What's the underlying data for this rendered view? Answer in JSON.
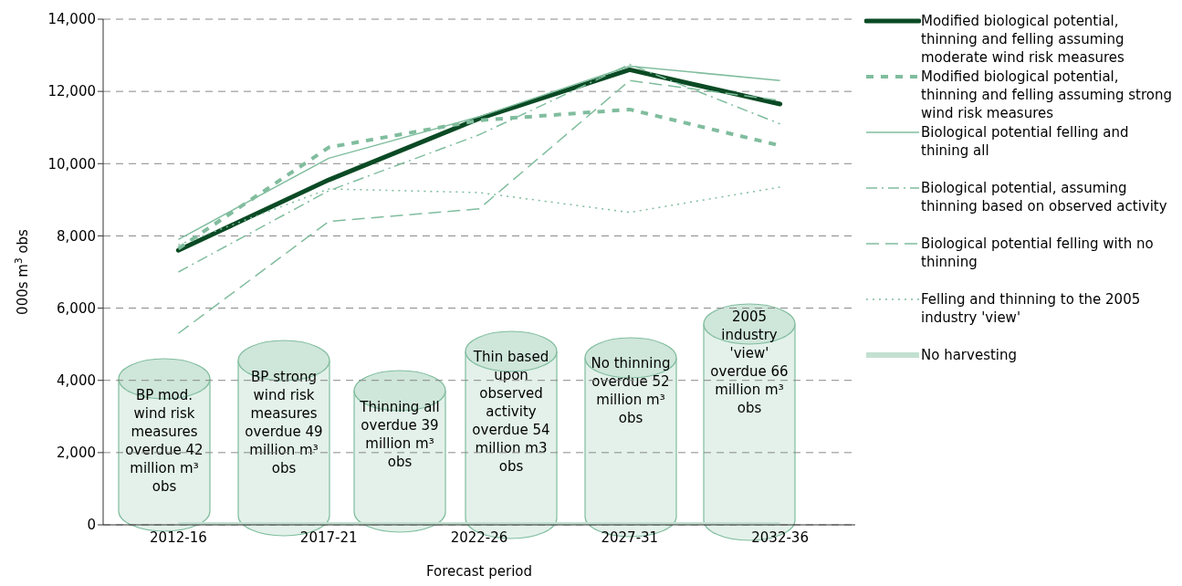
{
  "chart_data": {
    "type": "line",
    "xlabel": "Forecast period",
    "ylabel": "000s m$^{3}$ obs",
    "categories": [
      "2012-16",
      "2017-21",
      "2022-26",
      "2027-31",
      "2032-36"
    ],
    "series": [
      {
        "name": "Modified biological potential, thinning and felling assuming moderate wind risk measures",
        "color": "#0a4a24",
        "line_style": "solid",
        "values": [
          7600,
          9550,
          11250,
          12600,
          11650
        ]
      },
      {
        "name": "Modified biological potential, thinning and felling assuming strong wind risk measures",
        "color": "#80bd9e",
        "line_style": "dashed",
        "values": [
          7650,
          10450,
          11200,
          11500,
          10500
        ]
      },
      {
        "name": "Biological potential felling and thining all",
        "color": "#80bd9e",
        "line_style": "solid",
        "values": [
          7900,
          10150,
          11300,
          12700,
          12300
        ]
      },
      {
        "name": "Biological potential, assuming thinning based on observed activity",
        "color": "#80bd9e",
        "line_style": "dashdot",
        "values": [
          7000,
          9250,
          10800,
          12750,
          11100
        ]
      },
      {
        "name": "Biological potential felling with no thinning",
        "color": "#80bd9e",
        "line_style": "dashed",
        "values": [
          5300,
          8400,
          8750,
          12300,
          11750
        ]
      },
      {
        "name": "Felling and thinning to the 2005 industry 'view'",
        "color": "#80bd9e",
        "line_style": "dotted",
        "values": [
          7750,
          9300,
          9200,
          8650,
          9350
        ]
      },
      {
        "name": "No harvesting",
        "color": "#c3e0d1",
        "line_style": "solid",
        "values": [
          0,
          0,
          0,
          0,
          0
        ]
      }
    ],
    "ylim": [
      0,
      14000
    ],
    "yticks": [
      0,
      {
        "value": 2000,
        "label": "2,000"
      },
      {
        "value": 4000,
        "label": "4,000"
      },
      {
        "value": 6000,
        "label": "6,000"
      },
      {
        "value": 8000,
        "label": "8,000"
      },
      {
        "value": 10000,
        "label": "10,000"
      },
      {
        "value": 12000,
        "label": "12,000"
      },
      {
        "value": 14000,
        "label": "14,000"
      }
    ],
    "grid": "y",
    "legend": "right",
    "annotations": [
      "BP mod. wind risk measures overdue 42 million m³ obs",
      "BP strong wind risk measures overdue 49 million m³ obs",
      "Thinning all overdue 39 million m³ obs",
      "Thin based upon observed activity overdue 54 million m3 obs",
      "No thinning overdue 52 million m³ obs",
      "2005 industry 'view' overdue 66 million m³ obs"
    ]
  }
}
